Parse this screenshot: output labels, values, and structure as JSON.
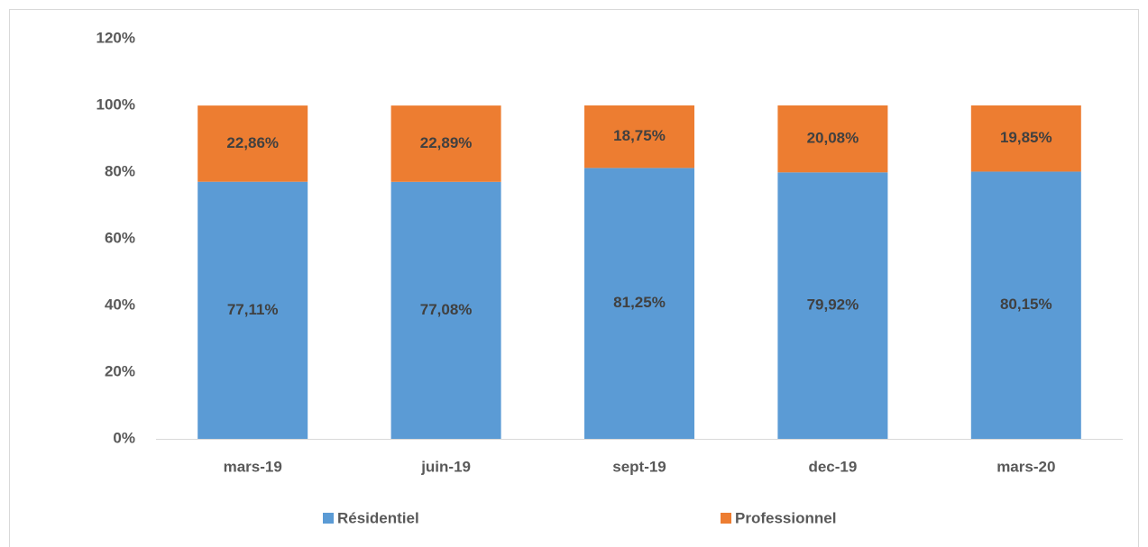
{
  "chart_data": {
    "type": "stacked_bar",
    "categories": [
      "mars-19",
      "juin-19",
      "sept-19",
      "dec-19",
      "mars-20"
    ],
    "series": [
      {
        "name": "Résidentiel",
        "color": "#5b9bd5",
        "values": [
          77.11,
          77.08,
          81.25,
          79.92,
          80.15
        ],
        "value_labels": [
          "77,11%",
          "77,08%",
          "81,25%",
          "79,92%",
          "80,15%"
        ]
      },
      {
        "name": "Professionnel",
        "color": "#ed7d31",
        "values": [
          22.86,
          22.89,
          18.75,
          20.08,
          19.85
        ],
        "value_labels": [
          "22,86%",
          "22,89%",
          "18,75%",
          "20,08%",
          "19,85%"
        ]
      }
    ],
    "ylim": [
      0,
      120
    ],
    "yticks": [
      {
        "value": 0,
        "label": "0%"
      },
      {
        "value": 20,
        "label": "20%"
      },
      {
        "value": 40,
        "label": "40%"
      },
      {
        "value": 60,
        "label": "60%"
      },
      {
        "value": 80,
        "label": "80%"
      },
      {
        "value": 100,
        "label": "100%"
      },
      {
        "value": 120,
        "label": "120%"
      }
    ],
    "grid": false,
    "legend": "bottom"
  }
}
